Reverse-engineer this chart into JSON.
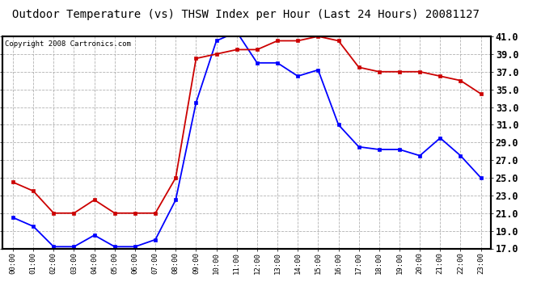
{
  "title": "Outdoor Temperature (vs) THSW Index per Hour (Last 24 Hours) 20081127",
  "copyright": "Copyright 2008 Cartronics.com",
  "x_labels": [
    "00:00",
    "01:00",
    "02:00",
    "03:00",
    "04:00",
    "05:00",
    "06:00",
    "07:00",
    "08:00",
    "09:00",
    "10:00",
    "11:00",
    "12:00",
    "13:00",
    "14:00",
    "15:00",
    "16:00",
    "17:00",
    "18:00",
    "19:00",
    "20:00",
    "21:00",
    "22:00",
    "23:00"
  ],
  "temp_data": [
    20.5,
    19.5,
    17.2,
    17.2,
    18.5,
    17.2,
    17.2,
    18.0,
    22.5,
    33.5,
    40.5,
    41.5,
    38.0,
    38.0,
    36.5,
    37.2,
    31.0,
    28.5,
    28.2,
    28.2,
    27.5,
    29.5,
    27.5,
    25.0
  ],
  "thsw_data": [
    24.5,
    23.5,
    21.0,
    21.0,
    22.5,
    21.0,
    21.0,
    21.0,
    25.0,
    38.5,
    39.0,
    39.5,
    39.5,
    40.5,
    40.5,
    41.0,
    40.5,
    37.5,
    37.0,
    37.0,
    37.0,
    36.5,
    36.0,
    34.5
  ],
  "temp_color": "#0000ff",
  "thsw_color": "#cc0000",
  "ylim": [
    17.0,
    41.0
  ],
  "y_ticks": [
    17.0,
    19.0,
    21.0,
    23.0,
    25.0,
    27.0,
    29.0,
    31.0,
    33.0,
    35.0,
    37.0,
    39.0,
    41.0
  ],
  "bg_color": "#ffffff",
  "grid_color": "#aaaaaa",
  "title_fontsize": 10,
  "copyright_fontsize": 6.5,
  "ytick_fontsize": 8.5,
  "xtick_fontsize": 6.5
}
